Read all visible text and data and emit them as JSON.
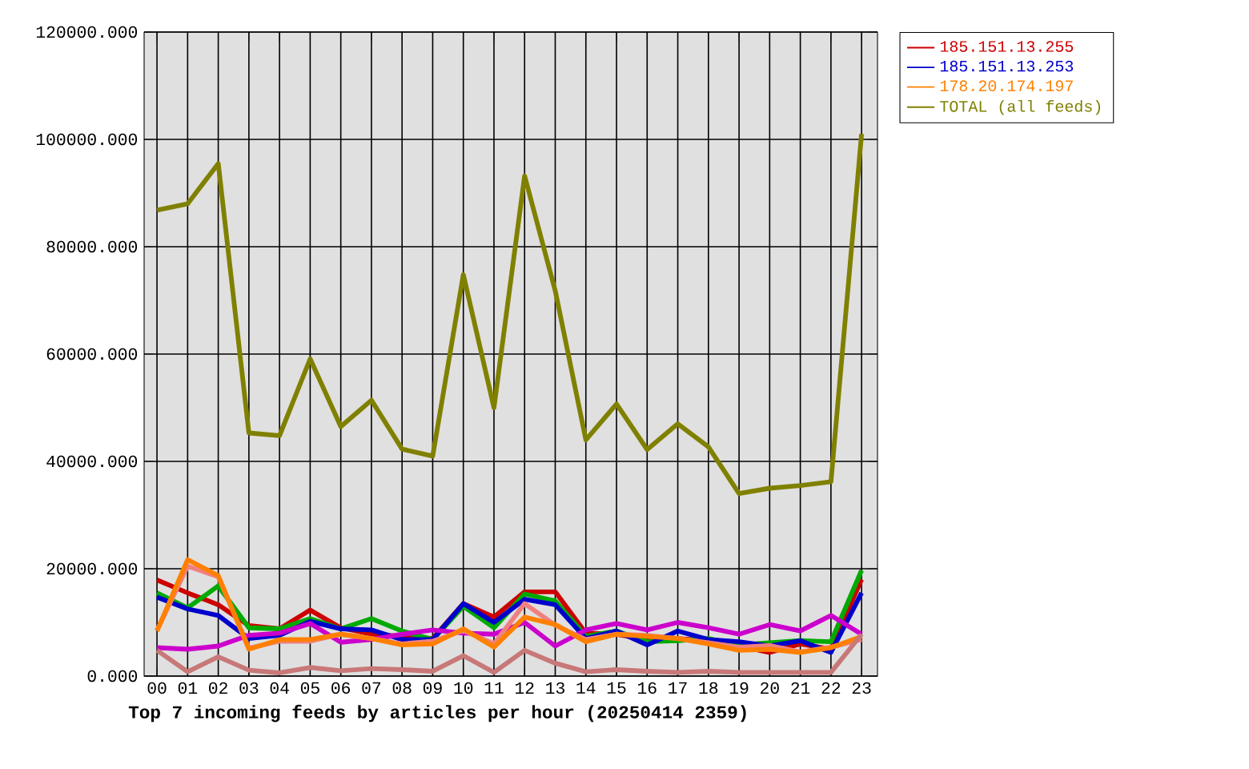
{
  "chart_data": {
    "type": "line",
    "title": "Top 7 incoming feeds by articles per hour (20250414 2359)",
    "categories": [
      "00",
      "01",
      "02",
      "03",
      "04",
      "05",
      "06",
      "07",
      "08",
      "09",
      "10",
      "11",
      "12",
      "13",
      "14",
      "15",
      "16",
      "17",
      "18",
      "19",
      "20",
      "21",
      "22",
      "23"
    ],
    "ylim": [
      0,
      120000
    ],
    "yticks": [
      {
        "value": 0,
        "label": "0.000"
      },
      {
        "value": 20000,
        "label": "20000.000"
      },
      {
        "value": 40000,
        "label": "40000.000"
      },
      {
        "value": 60000,
        "label": "60000.000"
      },
      {
        "value": 80000,
        "label": "80000.000"
      },
      {
        "value": 100000,
        "label": "100000.000"
      },
      {
        "value": 120000,
        "label": "120000.000"
      }
    ],
    "grid": true,
    "legend": "right",
    "series": [
      {
        "name": "185.151.13.255",
        "color": "#cc0000",
        "values": [
          17900,
          15500,
          13300,
          9400,
          8800,
          12300,
          9000,
          7800,
          7400,
          7000,
          13500,
          11000,
          15700,
          15700,
          8000,
          7800,
          6800,
          7000,
          6600,
          5600,
          4400,
          6000,
          5000,
          18000
        ]
      },
      {
        "color": "#00aa00",
        "values": [
          15500,
          12700,
          16800,
          9000,
          8800,
          10700,
          8800,
          10700,
          8400,
          6800,
          13000,
          9000,
          15300,
          14000,
          7400,
          8400,
          6400,
          6600,
          7000,
          5800,
          null,
          6600,
          6400,
          19700
        ]
      },
      {
        "name": "185.151.13.253",
        "color": "#0000cc",
        "values": [
          14700,
          12500,
          11300,
          7000,
          7600,
          10200,
          8800,
          8600,
          6800,
          6800,
          13500,
          10000,
          14300,
          13300,
          7000,
          8400,
          5800,
          8400,
          6800,
          6400,
          5600,
          6600,
          4400,
          15500
        ]
      },
      {
        "color": "#cc00cc",
        "values": [
          5300,
          5000,
          5600,
          7600,
          8000,
          9800,
          6300,
          6800,
          7800,
          8600,
          8000,
          7800,
          10000,
          5600,
          8600,
          9800,
          8600,
          10000,
          9000,
          7800,
          9600,
          8400,
          11300,
          7800
        ]
      },
      {
        "color": "#f08080",
        "values": [
          8500,
          20500,
          18500,
          5200,
          6500,
          6500,
          7800,
          7000,
          6000,
          6500,
          8500,
          6000,
          13500,
          9500,
          6800,
          7800,
          7600,
          7000,
          6200,
          5400,
          5700,
          4500,
          5400,
          6800
        ]
      },
      {
        "name": "178.20.174.197",
        "color": "#ff8000",
        "values": [
          8400,
          21700,
          18700,
          5000,
          6800,
          6800,
          7800,
          7000,
          5800,
          6000,
          8800,
          5400,
          11000,
          9600,
          6400,
          7800,
          7400,
          7000,
          6000,
          4800,
          5000,
          4400,
          5300,
          7400
        ]
      },
      {
        "color": "#c87878",
        "values": [
          4800,
          800,
          3600,
          1100,
          600,
          1600,
          1000,
          1400,
          1200,
          900,
          3800,
          700,
          4800,
          2400,
          800,
          1200,
          900,
          700,
          900,
          700,
          700,
          700,
          700,
          7800
        ]
      },
      {
        "name": "TOTAL (all feeds)",
        "color": "#808000",
        "values": [
          86800,
          88000,
          95500,
          45300,
          44800,
          59100,
          46500,
          51400,
          42300,
          41000,
          74800,
          50000,
          93200,
          71800,
          44000,
          50700,
          42200,
          47000,
          42700,
          34000,
          35000,
          35500,
          36200,
          101000
        ]
      }
    ]
  }
}
